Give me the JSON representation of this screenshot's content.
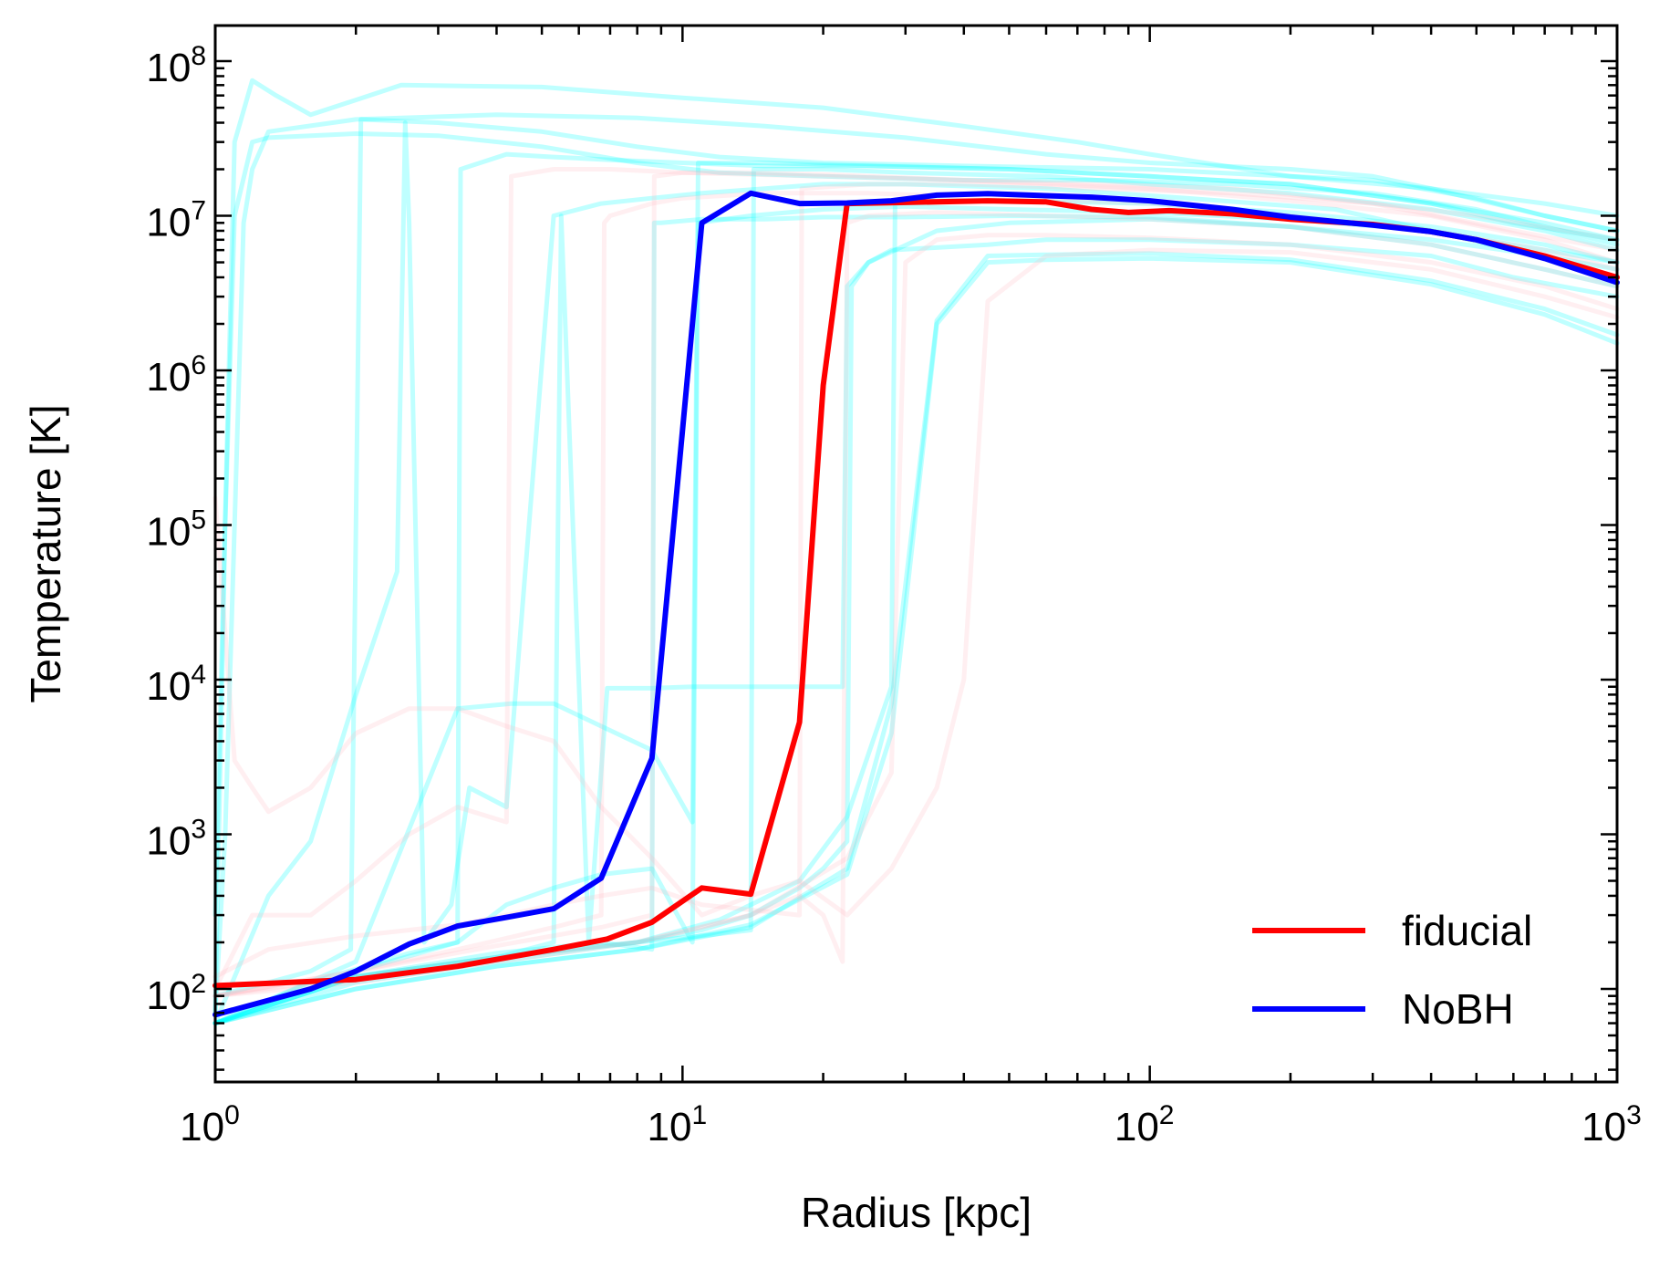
{
  "chart_data": {
    "type": "line",
    "title": "",
    "xlabel": "Radius [kpc]",
    "ylabel": "Temperature [K]",
    "xscale": "log",
    "yscale": "log",
    "xlim": [
      1,
      1000
    ],
    "ylim": [
      25,
      170000000
    ],
    "grid": false,
    "x_ticks": [
      {
        "base": "10",
        "exp": "0",
        "value": 1
      },
      {
        "base": "10",
        "exp": "1",
        "value": 10
      },
      {
        "base": "10",
        "exp": "2",
        "value": 100
      },
      {
        "base": "10",
        "exp": "3",
        "value": 1000
      }
    ],
    "y_ticks": [
      {
        "base": "10",
        "exp": "2",
        "value": 100
      },
      {
        "base": "10",
        "exp": "3",
        "value": 1000
      },
      {
        "base": "10",
        "exp": "4",
        "value": 10000
      },
      {
        "base": "10",
        "exp": "5",
        "value": 100000
      },
      {
        "base": "10",
        "exp": "6",
        "value": 1000000
      },
      {
        "base": "10",
        "exp": "7",
        "value": 10000000
      },
      {
        "base": "10",
        "exp": "8",
        "value": 100000000
      }
    ],
    "legend": {
      "position": "lower-right",
      "entries": [
        {
          "label": "fiducial",
          "color": "#ff0000"
        },
        {
          "label": "NoBH",
          "color": "#0000ff"
        }
      ]
    },
    "series": [
      {
        "name": "fiducial",
        "color": "#ff0000",
        "x": [
          1.0,
          2.0,
          3.3,
          5.3,
          6.9,
          8.6,
          11.0,
          14.0,
          17.8,
          20.0,
          22.5,
          30,
          45,
          60,
          75,
          90,
          110,
          150,
          200,
          300,
          400,
          500,
          700,
          1000
        ],
        "y": [
          105,
          115,
          140,
          180,
          210,
          270,
          450,
          410,
          5300,
          800000,
          12000000,
          12200000,
          12500000,
          12300000,
          11000000,
          10500000,
          10800000,
          10300000,
          9500000,
          8800000,
          7900000,
          7000000,
          5500000,
          4000000
        ]
      },
      {
        "name": "NoBH",
        "color": "#0000ff",
        "x": [
          1.0,
          1.6,
          2.0,
          2.6,
          3.3,
          4.2,
          5.3,
          6.7,
          8.6,
          11.0,
          14.0,
          17.8,
          22.5,
          28,
          35,
          45,
          60,
          75,
          100,
          150,
          200,
          300,
          400,
          500,
          700,
          1000
        ],
        "y": [
          68,
          100,
          130,
          195,
          255,
          290,
          330,
          520,
          3100,
          9000000,
          14000000,
          12000000,
          12100000,
          12500000,
          13600000,
          13900000,
          13500000,
          13200000,
          12500000,
          11000000,
          9800000,
          8700000,
          7900000,
          7000000,
          5300000,
          3700000
        ]
      },
      {
        "name": "cyan-01",
        "color": "#00ffff",
        "x": [
          1.0,
          1.1,
          1.2,
          1.35,
          1.6,
          2.5,
          5,
          10,
          20,
          40,
          70,
          100,
          200,
          400,
          700,
          1000
        ],
        "y": [
          300,
          30000000,
          75000000,
          60000000,
          45000000,
          70000000,
          68000000,
          58000000,
          50000000,
          38000000,
          30000000,
          25000000,
          18000000,
          15000000,
          12000000,
          10000000
        ]
      },
      {
        "name": "cyan-02",
        "color": "#00ffff",
        "x": [
          1.0,
          1.05,
          1.1,
          1.15,
          1.2,
          1.3,
          2,
          4,
          8,
          15,
          30,
          60,
          100,
          200,
          300,
          400,
          700,
          1000
        ],
        "y": [
          70,
          1000,
          100000,
          9000000,
          20000000,
          35000000,
          42000000,
          45000000,
          43000000,
          38000000,
          32000000,
          25000000,
          22000000,
          20000000,
          18000000,
          15000000,
          10000000,
          8000000
        ]
      },
      {
        "name": "cyan-03",
        "color": "#00ffff",
        "x": [
          1.0,
          1.05,
          1.1,
          1.2,
          1.3,
          2,
          3,
          5,
          8,
          12,
          20,
          40,
          80,
          150,
          300,
          500,
          700,
          1000
        ],
        "y": [
          70,
          100000,
          10000000,
          30000000,
          32000000,
          34000000,
          33000000,
          28000000,
          22000000,
          19000000,
          18000000,
          17000000,
          17000000,
          16000000,
          14000000,
          11000000,
          8500000,
          6500000
        ]
      },
      {
        "name": "cyan-04",
        "color": "#00ffff",
        "x": [
          1.0,
          1.3,
          1.6,
          1.95,
          2.05,
          3,
          5,
          8,
          12,
          20,
          40,
          100,
          200,
          300,
          500,
          700,
          1000
        ],
        "y": [
          90,
          110,
          130,
          180,
          42000000,
          40000000,
          35000000,
          28000000,
          24000000,
          22000000,
          21000000,
          20000000,
          18000000,
          17000000,
          13000000,
          10000000,
          8000000
        ]
      },
      {
        "name": "cyan-05",
        "color": "#00ffff",
        "x": [
          1.0,
          1.3,
          1.6,
          2.0,
          2.45,
          2.55,
          2.6,
          2.8,
          3.2,
          3.5,
          4.2,
          5.3,
          6.7,
          8.6,
          11,
          15,
          20,
          30,
          60,
          120,
          250,
          400,
          600,
          1000
        ],
        "y": [
          60,
          400,
          900,
          8000,
          50000,
          40000000,
          9000000,
          200,
          350,
          2000,
          1500,
          10000000,
          12000000,
          13000000,
          14000000,
          15000000,
          16000000,
          16000000,
          15000000,
          13000000,
          11000000,
          8000000,
          6000000,
          4000000
        ]
      },
      {
        "name": "cyan-06",
        "color": "#00ffff",
        "x": [
          1.0,
          1.6,
          2.6,
          3.3,
          3.35,
          4.2,
          5.3,
          7,
          10,
          15,
          25,
          50,
          100,
          200,
          400,
          700,
          1000
        ],
        "y": [
          60,
          110,
          170,
          200,
          20000000,
          25000000,
          24000000,
          23000000,
          22000000,
          21000000,
          21000000,
          20000000,
          18000000,
          16000000,
          12000000,
          9000000,
          7000000
        ]
      },
      {
        "name": "cyan-07",
        "color": "#00ffff",
        "x": [
          1.0,
          2,
          3.3,
          4.3,
          5.3,
          6.7,
          8.6,
          10.5,
          10.8,
          15,
          25,
          50,
          100,
          200,
          400,
          600,
          1000
        ],
        "y": [
          60,
          150,
          6500,
          7000,
          7000,
          5000,
          3500,
          1200,
          22000000,
          22000000,
          21000000,
          20000000,
          18000000,
          16000000,
          12000000,
          9000000,
          7000000
        ]
      },
      {
        "name": "cyan-08",
        "color": "#00ffff",
        "x": [
          1.0,
          2,
          3.3,
          4.2,
          5.3,
          6.7,
          8.6,
          10.5,
          10.8,
          14,
          20,
          30,
          50,
          100,
          200,
          400,
          700,
          1000
        ],
        "y": [
          60,
          130,
          200,
          350,
          450,
          550,
          600,
          200,
          9000000,
          10000000,
          11000000,
          11500000,
          11000000,
          10500000,
          9500000,
          8000000,
          6000000,
          5000000
        ]
      },
      {
        "name": "cyan-09",
        "color": "#00ffff",
        "x": [
          1.0,
          2,
          4,
          5.3,
          5.5,
          6.3,
          6.9,
          7.5,
          8.6,
          10.5,
          14,
          18,
          22,
          22.5,
          25,
          28,
          45,
          60,
          100,
          200,
          400,
          600,
          1000
        ],
        "y": [
          60,
          120,
          160,
          200,
          10000000,
          200,
          8800,
          8800,
          8800,
          9000,
          9000,
          9000,
          9000,
          3500000,
          5000000,
          6000000,
          6500000,
          7000000,
          7000000,
          6500000,
          5500000,
          4000000,
          3000000
        ]
      },
      {
        "name": "cyan-10",
        "color": "#00ffff",
        "x": [
          1.0,
          2,
          4,
          6.7,
          8.6,
          8.7,
          9,
          11,
          14,
          15,
          20,
          30,
          50,
          100,
          200,
          400,
          700,
          1000
        ],
        "y": [
          60,
          120,
          170,
          200,
          180,
          9000000,
          9000000,
          9500000,
          9500000,
          9500000,
          9800000,
          9800000,
          10000000,
          9800000,
          8500000,
          7000000,
          5500000,
          4500000
        ]
      },
      {
        "name": "cyan-11",
        "color": "#00ffff",
        "x": [
          1.0,
          2,
          4,
          8,
          11,
          14,
          14.2,
          20,
          30,
          60,
          100,
          200,
          400,
          700,
          1000
        ],
        "y": [
          60,
          120,
          160,
          200,
          220,
          240,
          20000000,
          20000000,
          19000000,
          18000000,
          16000000,
          14000000,
          11000000,
          8000000,
          6000000
        ]
      },
      {
        "name": "cyan-12",
        "color": "#00ffff",
        "x": [
          1.0,
          2,
          4,
          8,
          12,
          14,
          17.8,
          22.5,
          28,
          28.5,
          35,
          50,
          100,
          200,
          400,
          700,
          1000
        ],
        "y": [
          60,
          110,
          150,
          200,
          280,
          350,
          500,
          1300,
          9000,
          12000000,
          12500000,
          12500000,
          12000000,
          10500000,
          8500000,
          6500000,
          5000000
        ]
      },
      {
        "name": "cyan-13",
        "color": "#00ffff",
        "x": [
          1.0,
          2,
          4,
          8,
          11,
          14,
          17.8,
          20,
          22.5,
          23,
          25,
          35,
          50,
          100,
          200,
          400,
          700,
          1000
        ],
        "y": [
          60,
          120,
          160,
          200,
          240,
          300,
          450,
          600,
          900,
          3500000,
          5000000,
          8000000,
          9000000,
          9500000,
          8500000,
          6500000,
          4500000,
          3500000
        ]
      },
      {
        "name": "cyan-14",
        "color": "#00ffff",
        "x": [
          1.0,
          2,
          4,
          8,
          14,
          22.5,
          28,
          35,
          45,
          60,
          100,
          200,
          400,
          700,
          1000
        ],
        "y": [
          60,
          100,
          140,
          180,
          250,
          600,
          7000,
          2100000,
          5500000,
          5600000,
          5700000,
          5200000,
          3800000,
          2500000,
          1700000
        ]
      },
      {
        "name": "cyan-15",
        "color": "#00ffff",
        "x": [
          1.0,
          2,
          4,
          8,
          14,
          22.5,
          28,
          35,
          45,
          60,
          100,
          200,
          400,
          700,
          1000
        ],
        "y": [
          60,
          100,
          140,
          180,
          260,
          550,
          4500,
          2000000,
          5000000,
          5200000,
          5300000,
          5000000,
          3600000,
          2300000,
          1500000
        ]
      },
      {
        "name": "pink-01",
        "color": "#ffb6c1",
        "x": [
          1.0,
          1.1,
          1.2,
          1.3,
          1.6,
          2,
          2.6,
          3.3,
          4.2,
          5.3,
          6.7,
          8.6,
          11,
          14,
          17.8,
          22.5,
          28,
          35,
          40,
          45,
          60,
          100,
          200,
          400,
          700,
          1000
        ],
        "y": [
          150000,
          3000,
          2000,
          1400,
          2000,
          4500,
          6500,
          6500,
          5000,
          4000,
          1500,
          700,
          300,
          400,
          500,
          300,
          600,
          2000,
          10000,
          2800000,
          5500000,
          6000000,
          5800000,
          4500000,
          3000000,
          2200000
        ]
      },
      {
        "name": "pink-02",
        "color": "#ffb6c1",
        "x": [
          1.0,
          1.2,
          1.4,
          1.6,
          2,
          2.6,
          3.3,
          4.2,
          4.3,
          5.3,
          7,
          10,
          20,
          40,
          80,
          150,
          300,
          600,
          1000
        ],
        "y": [
          100,
          300,
          300,
          300,
          500,
          1000,
          1500,
          1200,
          18000000,
          20000000,
          20000000,
          19000000,
          18000000,
          17000000,
          16000000,
          15000000,
          12000000,
          8000000,
          6000000
        ]
      },
      {
        "name": "pink-03",
        "color": "#ffb6c1",
        "x": [
          1.0,
          2,
          3.3,
          5.3,
          6.7,
          6.8,
          7,
          8.6,
          10,
          15,
          25,
          50,
          100,
          200,
          400,
          700,
          1000
        ],
        "y": [
          90,
          130,
          180,
          250,
          300,
          9000000,
          10000000,
          12000000,
          13000000,
          14000000,
          14000000,
          13000000,
          12000000,
          10000000,
          8000000,
          6000000,
          4500000
        ]
      },
      {
        "name": "pink-04",
        "color": "#ffb6c1",
        "x": [
          1.0,
          2,
          4,
          6.7,
          8.6,
          8.7,
          10,
          14,
          20,
          40,
          100,
          200,
          400,
          700,
          1000
        ],
        "y": [
          90,
          130,
          190,
          250,
          300,
          18000000,
          19000000,
          19000000,
          18500000,
          17000000,
          15000000,
          12500000,
          10000000,
          7000000,
          5000000
        ]
      },
      {
        "name": "pink-05",
        "color": "#ffb6c1",
        "x": [
          1.0,
          2,
          4,
          8,
          11,
          14,
          17.8,
          20,
          22,
          22.5,
          25,
          35,
          60,
          100,
          200,
          400,
          700,
          1000
        ],
        "y": [
          90,
          120,
          160,
          200,
          250,
          300,
          400,
          300,
          150,
          9000000,
          10000000,
          10500000,
          10000000,
          9500000,
          8500000,
          6500000,
          4500000,
          3500000
        ]
      },
      {
        "name": "pink-06",
        "color": "#ffb6c1",
        "x": [
          1.0,
          2,
          4,
          8,
          14,
          22.5,
          28,
          30,
          35,
          45,
          60,
          100,
          200,
          400,
          700,
          1000
        ],
        "y": [
          90,
          110,
          150,
          200,
          300,
          700,
          2500,
          5000000,
          7000000,
          7500000,
          7500000,
          7200000,
          6500000,
          5000000,
          3500000,
          2500000
        ]
      },
      {
        "name": "pink-07",
        "color": "#ffb6c1",
        "x": [
          1.0,
          1.3,
          2,
          3.3,
          4.2,
          5.3,
          6.7,
          8.6,
          11,
          17.8,
          18,
          25,
          40,
          80,
          150,
          300,
          500,
          1000
        ],
        "y": [
          120,
          180,
          220,
          260,
          300,
          350,
          400,
          450,
          350,
          300,
          15000000,
          16000000,
          16000000,
          15000000,
          14000000,
          12000000,
          10000000,
          7000000
        ]
      }
    ]
  }
}
